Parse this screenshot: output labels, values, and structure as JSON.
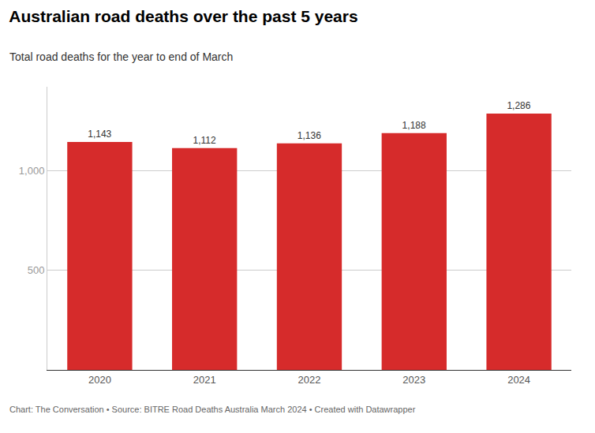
{
  "chart_data": {
    "type": "bar",
    "title": "Australian road deaths over the past 5 years",
    "subtitle": "Total road deaths for the year to end of March",
    "annotations": [
      "Chart: The Conversation • Source: BITRE Road Deaths Australia March 2024 • Created with Datawrapper"
    ],
    "categories": [
      "2020",
      "2021",
      "2022",
      "2023",
      "2024"
    ],
    "values": [
      1143,
      1112,
      1136,
      1188,
      1286
    ],
    "value_labels": [
      "1,143",
      "1,112",
      "1,136",
      "1,188",
      "1,286"
    ],
    "data_labels": true,
    "color": "#d62b2b",
    "ylim": [
      0,
      1420
    ],
    "yticks": [
      500,
      {
        "value": 1000,
        "label": "1,000"
      }
    ],
    "grid": true
  }
}
